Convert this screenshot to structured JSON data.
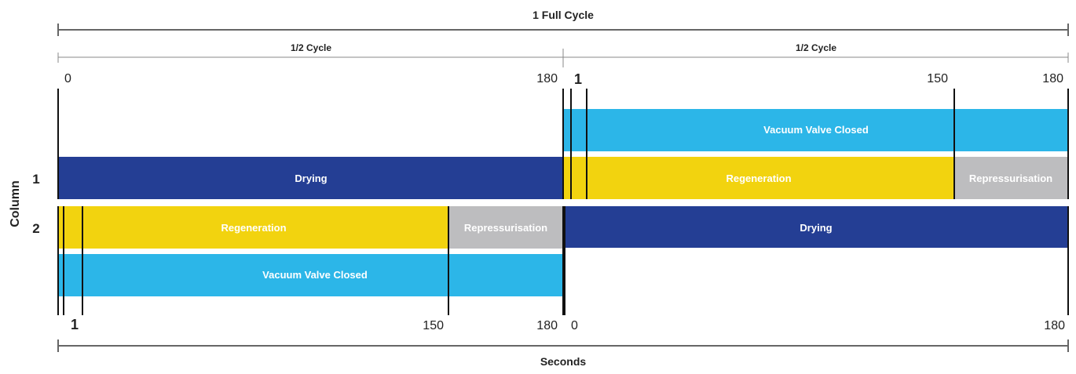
{
  "header": {
    "full_cycle_label": "1 Full Cycle",
    "half_cycle_left_label": "1/2 Cycle",
    "half_cycle_right_label": "1/2 Cycle"
  },
  "axis": {
    "y_title": "Column",
    "row1_label": "1",
    "row2_label": "2",
    "x_title": "Seconds"
  },
  "top_ticks": {
    "left_start": "0",
    "left_end": "180",
    "right_one": "1",
    "right_mid": "150",
    "right_end": "180"
  },
  "bottom_ticks": {
    "left_one": "1",
    "left_mid": "150",
    "left_end": "180",
    "right_start": "0",
    "right_end": "180"
  },
  "bars": {
    "vacuum_top": "Vacuum Valve Closed",
    "drying_top": "Drying",
    "regen_top": "Regeneration",
    "repress_top": "Repressurisation",
    "regen_bottom": "Regeneration",
    "repress_bottom": "Repressurisation",
    "drying_bottom": "Drying",
    "vacuum_bottom": "Vacuum Valve Closed"
  },
  "colors": {
    "drying": "#243e94",
    "regeneration": "#f2d30f",
    "repressurisation": "#bdbdbf",
    "vacuum_valve_closed": "#2cb6e8",
    "bar_text": "#ffffff"
  }
}
